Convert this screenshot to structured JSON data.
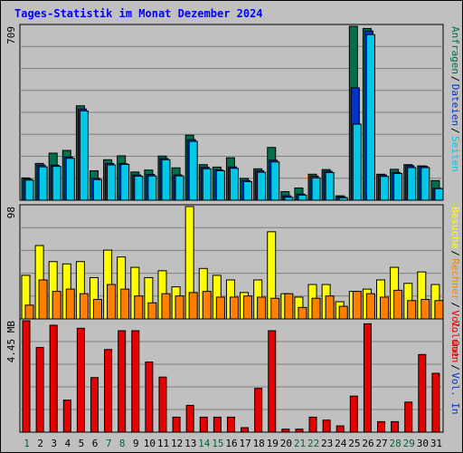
{
  "title": "Tages-Statistik im Monat Dezember 2024",
  "colors": {
    "background": "#c0c0c0",
    "plot_background": "#c0c0c0",
    "grid": "#808080",
    "title": "#0000ff",
    "day_weekday": "#000000",
    "day_weekend": "#006633",
    "anfragen": "#006f4e",
    "dateien": "#0033cc",
    "seiten": "#00c8e6",
    "besuche": "#ffff00",
    "rechner": "#ff8000",
    "volumen": "#e60000"
  },
  "days": [
    "1",
    "2",
    "3",
    "4",
    "5",
    "6",
    "7",
    "8",
    "9",
    "10",
    "11",
    "12",
    "13",
    "14",
    "15",
    "16",
    "17",
    "18",
    "19",
    "20",
    "21",
    "22",
    "23",
    "24",
    "25",
    "26",
    "27",
    "28",
    "29",
    "30",
    "31"
  ],
  "weekend_days": [
    "1",
    "7",
    "8",
    "14",
    "15",
    "21",
    "22",
    "28",
    "29"
  ],
  "chart_data": [
    {
      "type": "bar",
      "panel": "top",
      "y_label": "709",
      "ylim": [
        0,
        709
      ],
      "legend": [
        {
          "label": "Anfragen",
          "color_key": "anfragen"
        },
        {
          "label": "Dateien",
          "color_key": "dateien"
        },
        {
          "label": "Seiten",
          "color_key": "seiten"
        }
      ],
      "series": [
        {
          "name": "Anfragen",
          "color_key": "anfragen",
          "values": [
            91,
            150,
            192,
            203,
            385,
            120,
            165,
            181,
            115,
            123,
            180,
            132,
            265,
            145,
            135,
            173,
            89,
            128,
            215,
            35,
            50,
            106,
            125,
            18,
            709,
            700,
            106,
            126,
            145,
            140,
            80
          ]
        },
        {
          "name": "Dateien",
          "color_key": "dateien",
          "values": [
            86,
            143,
            143,
            176,
            372,
            89,
            150,
            149,
            103,
            105,
            170,
            103,
            247,
            134,
            124,
            136,
            80,
            120,
            163,
            18,
            25,
            98,
            118,
            14,
            458,
            690,
            103,
            113,
            141,
            138,
            49
          ]
        },
        {
          "name": "Seiten",
          "color_key": "seiten",
          "values": [
            82,
            136,
            138,
            171,
            364,
            84,
            144,
            146,
            98,
            99,
            165,
            99,
            240,
            128,
            120,
            130,
            76,
            114,
            156,
            12,
            21,
            91,
            113,
            10,
            310,
            675,
            97,
            109,
            133,
            133,
            47
          ]
        }
      ]
    },
    {
      "type": "bar",
      "panel": "middle",
      "y_label": "98",
      "ylim": [
        0,
        98
      ],
      "legend": [
        {
          "label": "Besuche",
          "color_key": "besuche"
        },
        {
          "label": "Rechner",
          "color_key": "rechner"
        },
        {
          "label": "Vol. Out",
          "color_key": "volumen"
        }
      ],
      "series": [
        {
          "name": "Besuche",
          "color_key": "besuche",
          "values": [
            38,
            64,
            50,
            48,
            50,
            36,
            60,
            54,
            45,
            36,
            42,
            28,
            98,
            44,
            38,
            34,
            23,
            34,
            76,
            22,
            19,
            30,
            30,
            15,
            24,
            26,
            34,
            45,
            31,
            41,
            30
          ]
        },
        {
          "name": "Rechner",
          "color_key": "rechner",
          "values": [
            12,
            34,
            24,
            26,
            22,
            17,
            30,
            26,
            20,
            14,
            22,
            20,
            23,
            24,
            19,
            19,
            20,
            19,
            18,
            22,
            10,
            18,
            20,
            11,
            24,
            22,
            19,
            25,
            16,
            17,
            16
          ]
        }
      ]
    },
    {
      "type": "bar",
      "panel": "bottom",
      "y_label": "4.45 MB",
      "ylim": [
        0,
        4.45
      ],
      "legend": [
        {
          "label": "Volumen",
          "color_key": "volumen"
        },
        {
          "label": "Vol. In",
          "color_key": "dateien"
        }
      ],
      "series": [
        {
          "name": "Volumen",
          "color_key": "volumen",
          "values": [
            4.45,
            3.38,
            4.27,
            1.28,
            4.15,
            2.18,
            3.3,
            4.05,
            4.05,
            2.8,
            2.2,
            0.6,
            1.07,
            0.6,
            0.6,
            0.6,
            0.18,
            1.75,
            4.05,
            0.12,
            0.12,
            0.6,
            0.48,
            0.25,
            1.44,
            4.33,
            0.42,
            0.42,
            1.2,
            3.1,
            2.35
          ]
        }
      ]
    }
  ]
}
